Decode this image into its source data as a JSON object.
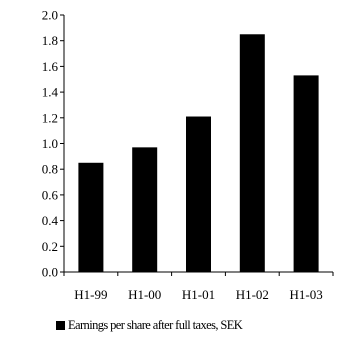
{
  "chart_data": {
    "type": "bar",
    "categories": [
      "H1-99",
      "H1-00",
      "H1-01",
      "H1-02",
      "H1-03"
    ],
    "series": [
      {
        "name": "Earnings per share after full taxes, SEK",
        "values": [
          0.85,
          0.97,
          1.21,
          1.85,
          1.53
        ],
        "color": "#000000"
      }
    ],
    "y_ticks": [
      "0.0",
      "0.2",
      "0.4",
      "0.6",
      "0.8",
      "1.0",
      "1.2",
      "1.4",
      "1.6",
      "1.8",
      "2.0"
    ],
    "ylim": [
      0,
      2.0
    ],
    "grid": false,
    "legend_position": "bottom"
  }
}
